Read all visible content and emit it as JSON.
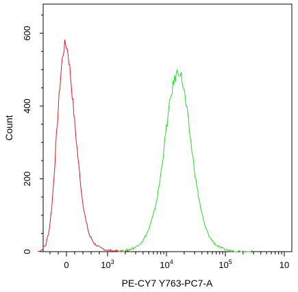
{
  "chart_data": {
    "type": "line",
    "title": "",
    "xlabel": "PE-CY7 Y763-PC7-A",
    "ylabel": "Count",
    "x_scale": "biexponential",
    "ylim": [
      0,
      680
    ],
    "grid": false,
    "legend": "none",
    "x_ticks": [
      {
        "label": "0",
        "exp": "",
        "value": 0
      },
      {
        "label": "10",
        "exp": "3",
        "value": 1000
      },
      {
        "label": "10",
        "exp": "4",
        "value": 10000
      },
      {
        "label": "10",
        "exp": "5",
        "value": 100000
      },
      {
        "label": "10",
        "exp": "",
        "value": 1000000
      }
    ],
    "y_ticks": [
      "0",
      "200",
      "400",
      "600"
    ],
    "y_tick_values": [
      0,
      200,
      400,
      600
    ],
    "series": [
      {
        "color": "#e8141c",
        "points": [
          [
            -700,
            0
          ],
          [
            -600,
            5
          ],
          [
            -500,
            20
          ],
          [
            -420,
            60
          ],
          [
            -350,
            130
          ],
          [
            -290,
            230
          ],
          [
            -230,
            340
          ],
          [
            -170,
            440
          ],
          [
            -120,
            510
          ],
          [
            -70,
            555
          ],
          [
            -30,
            572
          ],
          [
            0,
            565
          ],
          [
            40,
            545
          ],
          [
            90,
            495
          ],
          [
            150,
            420
          ],
          [
            220,
            330
          ],
          [
            300,
            235
          ],
          [
            380,
            150
          ],
          [
            470,
            85
          ],
          [
            560,
            45
          ],
          [
            680,
            22
          ],
          [
            820,
            10
          ],
          [
            1000,
            4
          ],
          [
            1300,
            2
          ],
          [
            1700,
            1
          ],
          [
            2500,
            0
          ]
        ]
      },
      {
        "color": "#22dd22",
        "points": [
          [
            1500,
            0
          ],
          [
            2000,
            3
          ],
          [
            3000,
            12
          ],
          [
            4000,
            30
          ],
          [
            5000,
            60
          ],
          [
            6000,
            100
          ],
          [
            7000,
            150
          ],
          [
            8000,
            210
          ],
          [
            9000,
            280
          ],
          [
            10000,
            340
          ],
          [
            11500,
            410
          ],
          [
            13000,
            460
          ],
          [
            15000,
            490
          ],
          [
            16500,
            497
          ],
          [
            18000,
            480
          ],
          [
            20000,
            440
          ],
          [
            23000,
            370
          ],
          [
            27000,
            280
          ],
          [
            32000,
            190
          ],
          [
            38000,
            120
          ],
          [
            45000,
            70
          ],
          [
            55000,
            38
          ],
          [
            70000,
            18
          ],
          [
            90000,
            8
          ],
          [
            120000,
            3
          ],
          [
            180000,
            1
          ],
          [
            300000,
            0
          ]
        ]
      }
    ]
  }
}
